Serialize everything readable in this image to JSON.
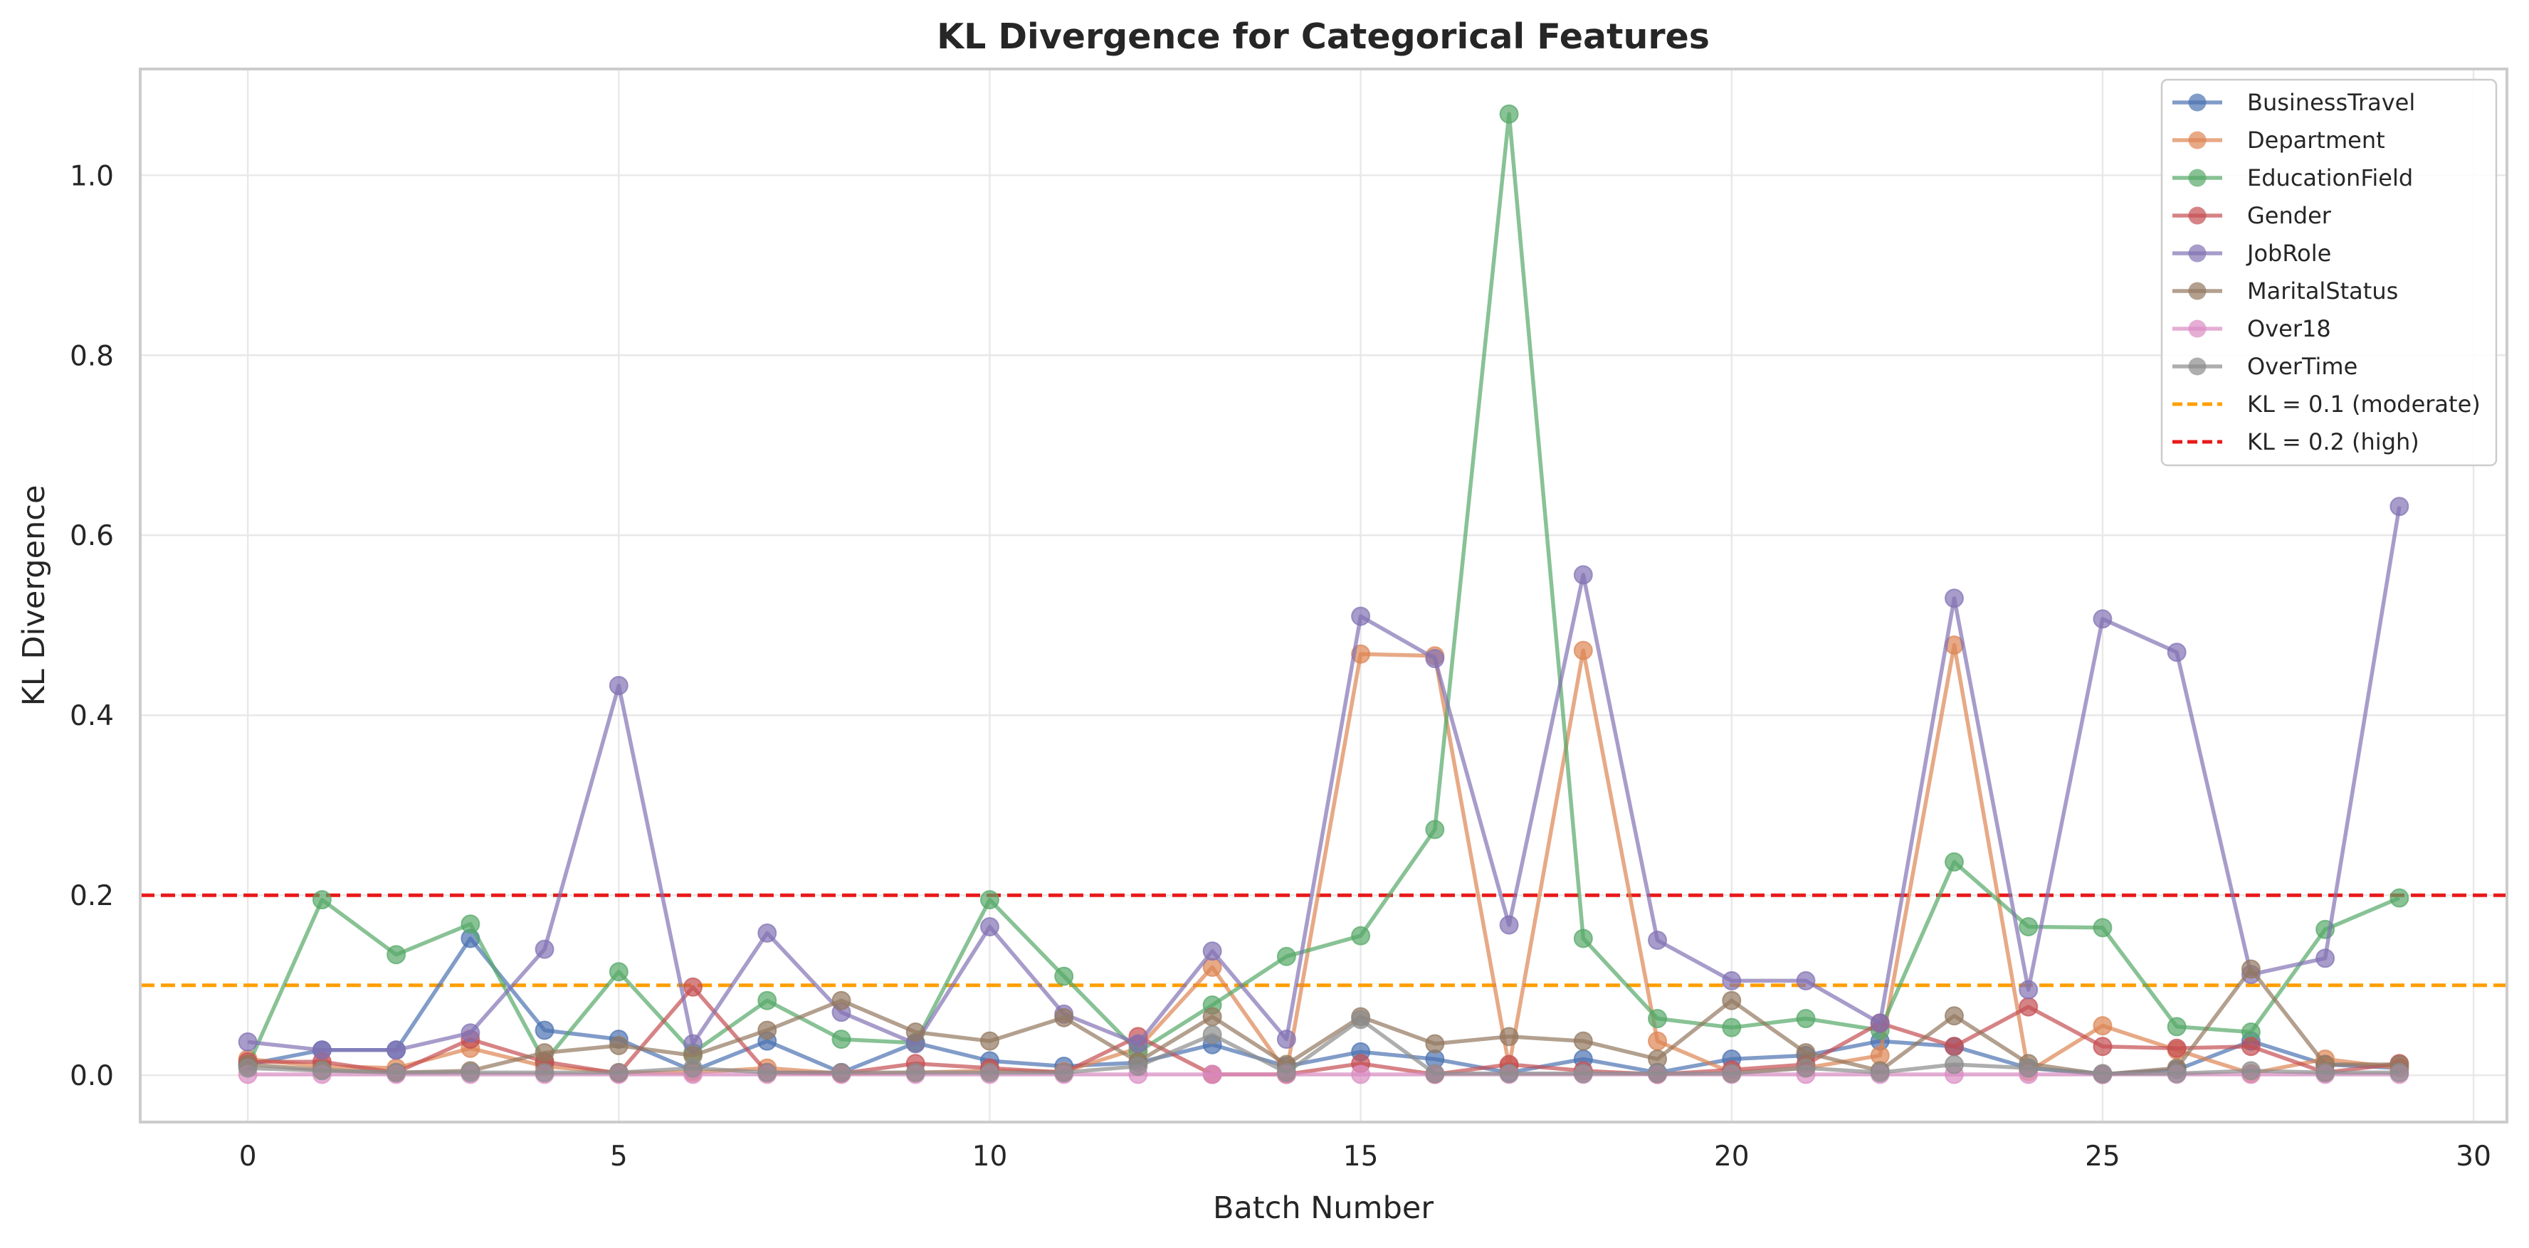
{
  "chart_data": {
    "type": "line",
    "title": "KL Divergence for Categorical Features",
    "xlabel": "Batch Number",
    "ylabel": "KL Divergence",
    "xlim": [
      -1.45,
      30.45
    ],
    "ylim": [
      -0.052,
      1.118
    ],
    "xticks": [
      0,
      5,
      10,
      15,
      20,
      25,
      30
    ],
    "yticks": [
      0.0,
      0.2,
      0.4,
      0.6,
      0.8,
      1.0
    ],
    "xtick_labels": [
      "0",
      "5",
      "10",
      "15",
      "20",
      "25",
      "30"
    ],
    "ytick_labels": [
      "0.0",
      "0.2",
      "0.4",
      "0.6",
      "0.8",
      "1.0"
    ],
    "grid": true,
    "legend_position": "top-right",
    "x": [
      0,
      1,
      2,
      3,
      4,
      5,
      6,
      7,
      8,
      9,
      10,
      11,
      12,
      13,
      14,
      15,
      16,
      17,
      18,
      19,
      20,
      21,
      22,
      23,
      24,
      25,
      26,
      27,
      28,
      29
    ],
    "series": [
      {
        "name": "BusinessTravel",
        "color": "#4C72B0",
        "values": [
          0.012,
          0.028,
          0.028,
          0.152,
          0.05,
          0.04,
          0.005,
          0.038,
          0.003,
          0.036,
          0.016,
          0.01,
          0.014,
          0.034,
          0.01,
          0.026,
          0.018,
          0.003,
          0.018,
          0.003,
          0.018,
          0.022,
          0.038,
          0.032,
          0.008,
          0.001,
          0.006,
          0.038,
          0.012,
          0.008
        ]
      },
      {
        "name": "Department",
        "color": "#DD8452",
        "values": [
          0.018,
          0.01,
          0.008,
          0.03,
          0.01,
          0.003,
          0.003,
          0.008,
          0.002,
          0.003,
          0.005,
          0.004,
          0.03,
          0.12,
          0.003,
          0.468,
          0.466,
          0.01,
          0.472,
          0.038,
          0.003,
          0.008,
          0.022,
          0.478,
          0.004,
          0.055,
          0.028,
          0.002,
          0.018,
          0.008
        ]
      },
      {
        "name": "EducationField",
        "color": "#55A868",
        "values": [
          0.01,
          0.195,
          0.134,
          0.168,
          0.015,
          0.115,
          0.025,
          0.083,
          0.04,
          0.036,
          0.195,
          0.11,
          0.026,
          0.078,
          0.132,
          0.155,
          0.273,
          1.068,
          0.152,
          0.063,
          0.053,
          0.063,
          0.05,
          0.237,
          0.165,
          0.164,
          0.054,
          0.048,
          0.162,
          0.197
        ]
      },
      {
        "name": "Gender",
        "color": "#C44E52",
        "values": [
          0.015,
          0.015,
          0.003,
          0.04,
          0.015,
          0.002,
          0.098,
          0.003,
          0.002,
          0.013,
          0.008,
          0.003,
          0.043,
          0.001,
          0.001,
          0.013,
          0.001,
          0.012,
          0.005,
          0.001,
          0.006,
          0.012,
          0.058,
          0.032,
          0.076,
          0.032,
          0.03,
          0.032,
          0.003,
          0.013
        ]
      },
      {
        "name": "JobRole",
        "color": "#8172B3",
        "values": [
          0.037,
          0.028,
          0.028,
          0.047,
          0.14,
          0.433,
          0.035,
          0.158,
          0.07,
          0.035,
          0.165,
          0.068,
          0.035,
          0.138,
          0.04,
          0.51,
          0.463,
          0.167,
          0.556,
          0.15,
          0.105,
          0.105,
          0.058,
          0.53,
          0.095,
          0.507,
          0.47,
          0.112,
          0.13,
          0.632
        ]
      },
      {
        "name": "MaritalStatus",
        "color": "#937860",
        "values": [
          0.012,
          0.006,
          0.003,
          0.005,
          0.025,
          0.033,
          0.022,
          0.05,
          0.083,
          0.048,
          0.038,
          0.064,
          0.015,
          0.065,
          0.012,
          0.065,
          0.035,
          0.043,
          0.038,
          0.018,
          0.083,
          0.025,
          0.005,
          0.066,
          0.013,
          0.001,
          0.008,
          0.118,
          0.012,
          0.012
        ]
      },
      {
        "name": "Over18",
        "color": "#DA8BC3",
        "values": [
          0.001,
          0.001,
          0.001,
          0.001,
          0.001,
          0.001,
          0.001,
          0.001,
          0.001,
          0.001,
          0.001,
          0.001,
          0.001,
          0.001,
          0.001,
          0.001,
          0.001,
          0.001,
          0.001,
          0.001,
          0.001,
          0.001,
          0.001,
          0.001,
          0.001,
          0.001,
          0.001,
          0.001,
          0.001,
          0.001
        ]
      },
      {
        "name": "OverTime",
        "color": "#8C8C8C",
        "values": [
          0.008,
          0.005,
          0.003,
          0.003,
          0.003,
          0.003,
          0.008,
          0.003,
          0.003,
          0.003,
          0.003,
          0.003,
          0.01,
          0.045,
          0.003,
          0.062,
          0.002,
          0.002,
          0.002,
          0.002,
          0.002,
          0.008,
          0.003,
          0.012,
          0.008,
          0.002,
          0.002,
          0.005,
          0.003,
          0.003
        ]
      }
    ],
    "reference_lines": [
      {
        "name": "KL = 0.1 (moderate)",
        "y": 0.1,
        "color": "#FF9F00",
        "style": "dashed"
      },
      {
        "name": "KL = 0.2 (high)",
        "y": 0.2,
        "color": "#E8191A",
        "style": "dashed"
      }
    ]
  }
}
